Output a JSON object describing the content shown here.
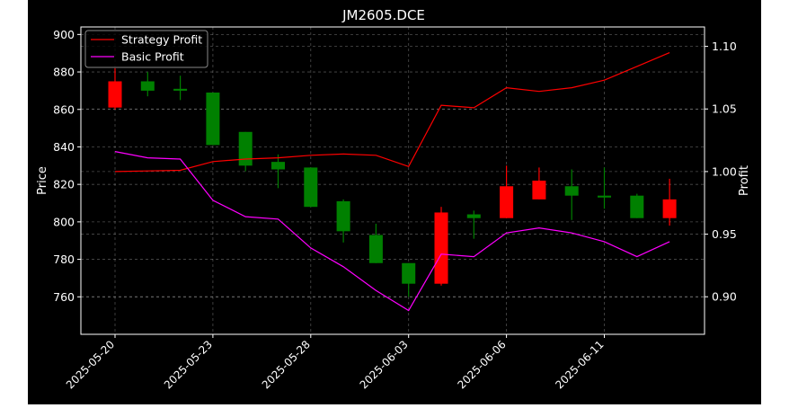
{
  "chart_data": {
    "type": "candlestick",
    "title": "JM2605.DCE",
    "ylabel_left": "Price",
    "ylabel_right": "Profit",
    "xlabel": "",
    "ylim_left": [
      740,
      904
    ],
    "ylim_right": [
      0.87,
      1.1155
    ],
    "yticks_left": [
      760,
      780,
      800,
      820,
      840,
      860,
      880,
      900
    ],
    "yticks_right": [
      0.9,
      0.95,
      1.0,
      1.05,
      1.1
    ],
    "ytick_labels_right": [
      "0.90",
      "0.95",
      "1.00",
      "1.05",
      "1.10"
    ],
    "grid": true,
    "legend_position": "top-left",
    "colors": {
      "up": "#ff0000",
      "down": "#008000",
      "strategy": "#ff0000",
      "basic": "#ff00ff",
      "background": "#000000",
      "text": "#ffffff"
    },
    "x_tick_labels": [
      {
        "index": 0,
        "label": "2025-05-20"
      },
      {
        "index": 3,
        "label": "2025-05-23"
      },
      {
        "index": 6,
        "label": "2025-05-28"
      },
      {
        "index": 9,
        "label": "2025-06-03"
      },
      {
        "index": 12,
        "label": "2025-06-06"
      },
      {
        "index": 15,
        "label": "2025-06-11"
      }
    ],
    "candles": [
      {
        "open": 861,
        "high": 882,
        "low": 860,
        "close": 875
      },
      {
        "open": 875,
        "high": 880,
        "low": 867,
        "close": 870
      },
      {
        "open": 871,
        "high": 878,
        "low": 865,
        "close": 870
      },
      {
        "open": 869,
        "high": 869,
        "low": 841,
        "close": 841
      },
      {
        "open": 848,
        "high": 848,
        "low": 827,
        "close": 830
      },
      {
        "open": 832,
        "high": 836,
        "low": 818,
        "close": 828
      },
      {
        "open": 829,
        "high": 829,
        "low": 808,
        "close": 808
      },
      {
        "open": 811,
        "high": 812,
        "low": 789,
        "close": 795
      },
      {
        "open": 793,
        "high": 799,
        "low": 778,
        "close": 778
      },
      {
        "open": 778,
        "high": 778,
        "low": 760,
        "close": 767
      },
      {
        "open": 767,
        "high": 808,
        "low": 766,
        "close": 805
      },
      {
        "open": 804,
        "high": 806,
        "low": 791,
        "close": 802
      },
      {
        "open": 802,
        "high": 830,
        "low": 802,
        "close": 819
      },
      {
        "open": 812,
        "high": 829,
        "low": 812,
        "close": 822
      },
      {
        "open": 819,
        "high": 828,
        "low": 801,
        "close": 814
      },
      {
        "open": 814,
        "high": 829,
        "low": 807,
        "close": 813
      },
      {
        "open": 814,
        "high": 815,
        "low": 802,
        "close": 802
      },
      {
        "open": 802,
        "high": 823,
        "low": 798,
        "close": 812
      }
    ],
    "series": [
      {
        "name": "Strategy Profit",
        "values": [
          1.0,
          1.0005,
          1.001,
          1.008,
          1.01,
          1.011,
          1.013,
          1.014,
          1.013,
          1.004,
          1.053,
          1.051,
          1.067,
          1.064,
          1.067,
          1.073,
          1.084,
          1.095
        ]
      },
      {
        "name": "Basic Profit",
        "values": [
          1.016,
          1.011,
          1.01,
          0.977,
          0.964,
          0.962,
          0.939,
          0.924,
          0.905,
          0.889,
          0.934,
          0.932,
          0.951,
          0.955,
          0.951,
          0.944,
          0.932,
          0.944
        ]
      }
    ]
  }
}
